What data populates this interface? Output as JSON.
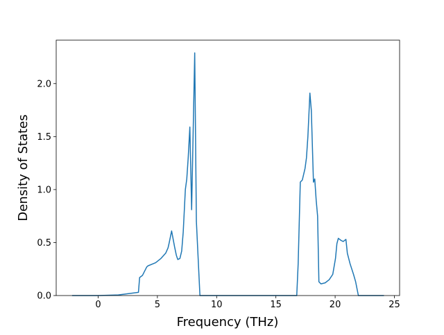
{
  "chart_data": {
    "type": "line",
    "xlabel": "Frequency (THz)",
    "ylabel": "Density of States",
    "x": [
      -2.2,
      0,
      1.7,
      3.4,
      3.5,
      3.74,
      4.1,
      4.2,
      4.85,
      5.3,
      5.7,
      5.9,
      6.0,
      6.2,
      6.45,
      6.6,
      6.72,
      6.9,
      7.05,
      7.18,
      7.36,
      7.48,
      7.6,
      7.74,
      7.89,
      8.15,
      8.29,
      8.59,
      16.76,
      16.88,
      17.06,
      17.23,
      17.46,
      17.58,
      17.7,
      17.87,
      17.99,
      18.17,
      18.28,
      18.4,
      18.52,
      18.63,
      18.81,
      19.16,
      19.5,
      19.8,
      20.03,
      20.15,
      20.27,
      20.5,
      20.68,
      20.91,
      21.03,
      21.26,
      21.55,
      21.73,
      21.96,
      24.12
    ],
    "series": [
      {
        "color": "#1f77b4",
        "values": [
          0,
          0,
          0.006,
          0.03,
          0.17,
          0.19,
          0.27,
          0.28,
          0.31,
          0.35,
          0.4,
          0.45,
          0.5,
          0.61,
          0.46,
          0.38,
          0.34,
          0.35,
          0.42,
          0.6,
          1.0,
          1.1,
          1.3,
          1.59,
          0.81,
          2.29,
          0.7,
          0,
          0,
          0.3,
          1.07,
          1.09,
          1.2,
          1.3,
          1.5,
          1.91,
          1.75,
          1.07,
          1.1,
          0.9,
          0.75,
          0.13,
          0.11,
          0.12,
          0.15,
          0.2,
          0.35,
          0.49,
          0.54,
          0.52,
          0.51,
          0.53,
          0.4,
          0.3,
          0.2,
          0.13,
          0,
          0
        ]
      }
    ],
    "xlim": [
      -3.54,
      25.44
    ],
    "ylim": [
      0,
      2.41
    ],
    "xticks": [
      0,
      5,
      10,
      15,
      20,
      25
    ],
    "yticks": [
      {
        "value": 0,
        "label": "0.0"
      },
      0.5,
      {
        "value": 1,
        "label": "1.0"
      },
      1.5,
      {
        "value": 2,
        "label": "2.0"
      }
    ]
  }
}
